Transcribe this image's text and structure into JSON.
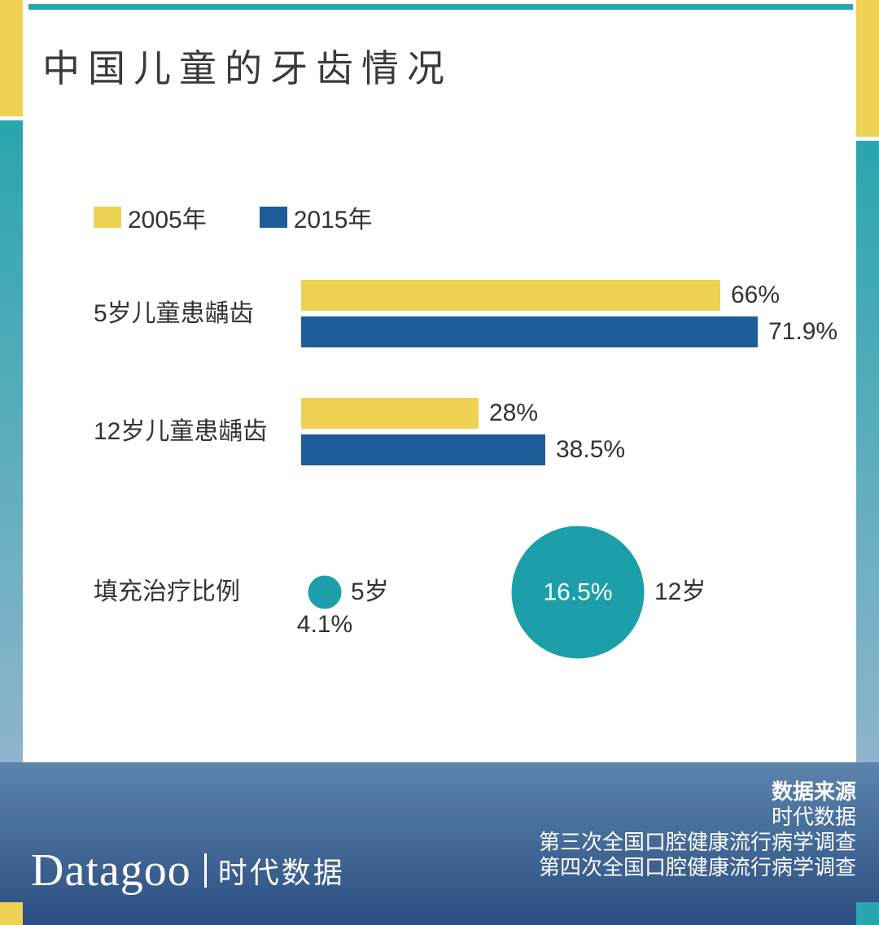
{
  "page": {
    "title": "中国儿童的牙齿情况"
  },
  "colors": {
    "yellow": "#EFD154",
    "blue": "#1E5C9A",
    "teal": "#1C9FA8",
    "footer_top": "#5C84AB",
    "footer_bottom": "#2B4E82"
  },
  "legend": {
    "items": [
      {
        "label": "2005年",
        "color": "#EFD154"
      },
      {
        "label": "2015年",
        "color": "#1E5C9A"
      }
    ]
  },
  "chart_data": {
    "type": "bar",
    "orientation": "horizontal",
    "title": "中国儿童的牙齿情况",
    "unit": "%",
    "xlim": [
      0,
      75
    ],
    "grid": false,
    "legend_position": "top",
    "categories": [
      "5岁儿童患龋齿",
      "12岁儿童患龋齿"
    ],
    "series": [
      {
        "name": "2005年",
        "color": "#EFD154",
        "values": [
          66,
          28
        ],
        "labels": [
          "66%",
          "28%"
        ]
      },
      {
        "name": "2015年",
        "color": "#1E5C9A",
        "values": [
          71.9,
          38.5
        ],
        "labels": [
          "71.9%",
          "38.5%"
        ]
      }
    ],
    "bubbles": {
      "label": "填充治疗比例",
      "color": "#1C9FA8",
      "items": [
        {
          "label": "5岁",
          "value": 4.1,
          "display": "4.1%",
          "value_position": "below"
        },
        {
          "label": "12岁",
          "value": 16.5,
          "display": "16.5%",
          "value_position": "inside"
        }
      ]
    }
  },
  "footer": {
    "logo": "Datagoo",
    "logo_cn": "时代数据",
    "source_heading": "数据来源",
    "source_lines": [
      "时代数据",
      "第三次全国口腔健康流行病学调查",
      "第四次全国口腔健康流行病学调查"
    ]
  }
}
